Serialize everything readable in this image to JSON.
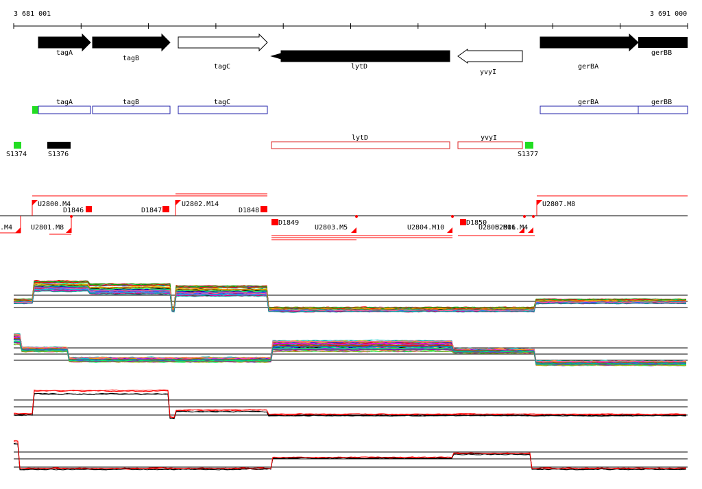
{
  "ruler": {
    "start_label": "3 681 001",
    "end_label": "3 691 000"
  },
  "genes": [
    {
      "label": "tagA",
      "filled": true,
      "dir": "right"
    },
    {
      "label": "tagB",
      "filled": true,
      "dir": "right"
    },
    {
      "label": "tagC",
      "filled": false,
      "dir": "right"
    },
    {
      "label": "lytD",
      "filled": true,
      "dir": "left"
    },
    {
      "label": "yvyI",
      "filled": false,
      "dir": "left"
    },
    {
      "label": "gerBA",
      "filled": true,
      "dir": "right"
    },
    {
      "label": "gerBB",
      "filled": true,
      "dir": "right"
    }
  ],
  "features_forward": [
    {
      "label": "tagA"
    },
    {
      "label": "tagB"
    },
    {
      "label": "tagC"
    },
    {
      "label": "gerBA"
    },
    {
      "label": "gerBB"
    }
  ],
  "features_reverse": [
    {
      "label": "lytD"
    },
    {
      "label": "yvyI"
    }
  ],
  "sigma_sites": [
    {
      "label": "S1374",
      "color": "#22dd22"
    },
    {
      "label": "S1376",
      "color": "#000000"
    },
    {
      "label": "S1377",
      "color": "#22dd22"
    }
  ],
  "segments_upper": [
    {
      "label": "U2800.M4"
    },
    {
      "label": "D1846"
    },
    {
      "label": "D1847"
    },
    {
      "label": "U2802.M14"
    },
    {
      "label": "D1848"
    },
    {
      "label": "U2807.M8"
    }
  ],
  "segments_lower": [
    {
      "label": ".M4"
    },
    {
      "label": "U2801.M8"
    },
    {
      "label": "D1849"
    },
    {
      "label": "U2803.M5"
    },
    {
      "label": "U2804.M10"
    },
    {
      "label": "D1850"
    },
    {
      "label": "U2805.M11"
    },
    {
      "label": "U2806.M4"
    }
  ],
  "colors": {
    "accent_red": "#ff0000",
    "strand": "#000000",
    "reverse_box": "#dd2222",
    "forward_box": "#2222aa"
  }
}
